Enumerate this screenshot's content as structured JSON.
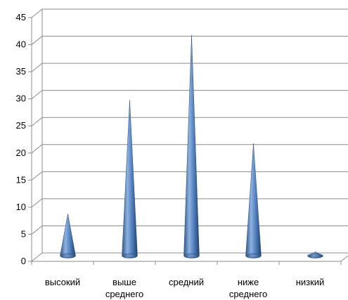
{
  "chart_data": {
    "type": "bar",
    "style": "3d-cone",
    "title": "",
    "xlabel": "",
    "ylabel": "",
    "ylim": [
      0,
      45
    ],
    "ytick_step": 5,
    "yticks": [
      "0",
      "5",
      "10",
      "15",
      "20",
      "25",
      "30",
      "35",
      "40",
      "45"
    ],
    "grid": true,
    "legend": "none",
    "categories": [
      [
        "высокий"
      ],
      [
        "выше",
        "среднего"
      ],
      [
        "средний"
      ],
      [
        "ниже",
        "среднего"
      ],
      [
        "низкий"
      ]
    ],
    "values": [
      8,
      29,
      41,
      21,
      1
    ],
    "colors": {
      "cone": "#4f81bd",
      "cone_dark": "#2a4f80",
      "cone_light": "#a9c4e8"
    }
  }
}
